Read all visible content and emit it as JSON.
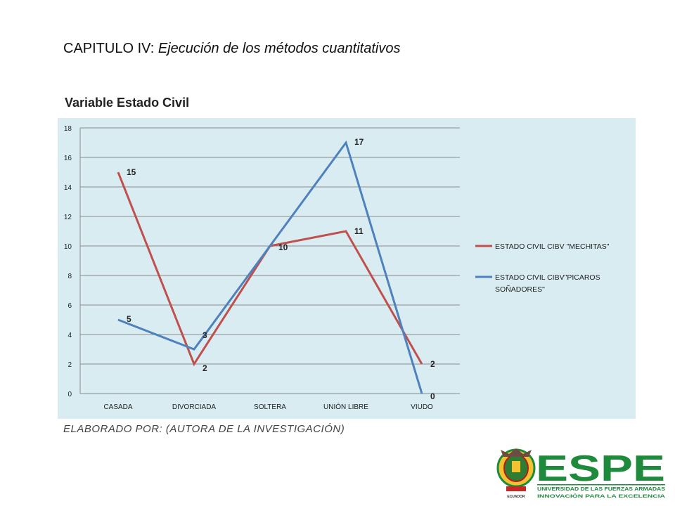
{
  "header": {
    "chapter_prefix": "CAPITULO IV: ",
    "chapter_title": "Ejecución de los métodos cuantitativos",
    "subtitle": "Variable Estado Civil"
  },
  "footer": {
    "credit": "ELABORADO POR: (AUTORA DE LA INVESTIGACIÓN)"
  },
  "logo": {
    "wordmark": "ESPE",
    "line1": "UNIVERSIDAD DE LAS FUERZAS ARMADAS",
    "line2": "INNOVACIÓN PARA LA EXCELENCIA",
    "seal_text": "ECUADOR"
  },
  "colors": {
    "panel_bg": "#d9ecf2",
    "series_red": "#c0504d",
    "series_blue": "#4f81bd",
    "logo_green": "#1e8a3c"
  },
  "chart_data": {
    "type": "line",
    "title": "",
    "xlabel": "",
    "ylabel": "",
    "categories": [
      "CASADA",
      "DIVORCIADA",
      "SOLTERA",
      "UNIÓN LIBRE",
      "VIUDO"
    ],
    "ylim": [
      0,
      18
    ],
    "yticks": [
      0,
      2,
      4,
      6,
      8,
      10,
      12,
      14,
      16,
      18
    ],
    "grid": true,
    "legend_position": "right",
    "series": [
      {
        "name": "ESTADO CIVIL CIBV \"MECHITAS\"",
        "color": "#c0504d",
        "values": [
          15,
          2,
          10,
          11,
          2
        ],
        "labels": [
          "15",
          "2",
          "10",
          "11",
          "2"
        ]
      },
      {
        "name": "ESTADO CIVIL CIBV\"PICAROS SOÑADORES\"",
        "color": "#4f81bd",
        "values": [
          5,
          3,
          10,
          17,
          0
        ],
        "labels": [
          "5",
          "3",
          "",
          "17",
          "0"
        ]
      }
    ]
  }
}
